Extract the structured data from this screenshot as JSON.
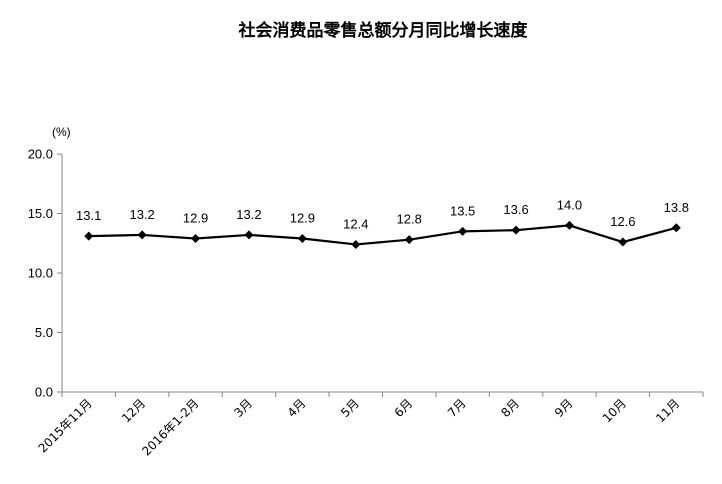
{
  "chart_data": {
    "type": "line",
    "title": "社会消费品零售总额分月同比增长速度",
    "unit_label": "(%)",
    "categories": [
      "2015年11月",
      "12月",
      "2016年1-2月",
      "3月",
      "4月",
      "5月",
      "6月",
      "7月",
      "8月",
      "9月",
      "10月",
      "11月"
    ],
    "series": [
      {
        "values": [
          13.1,
          13.2,
          12.9,
          13.2,
          12.9,
          12.4,
          12.8,
          13.5,
          13.6,
          14.0,
          12.6,
          13.8
        ],
        "labels": [
          "13.1",
          "13.2",
          "12.9",
          "13.2",
          "12.9",
          "12.4",
          "12.8",
          "13.5",
          "13.6",
          "14.0",
          "12.6",
          "13.8"
        ],
        "marker": "diamond",
        "color": "#000000"
      }
    ],
    "ylim": [
      0,
      20
    ],
    "yticks": [
      0,
      5,
      10,
      15,
      20
    ],
    "ytick_labels": [
      "0.0",
      "5.0",
      "10.0",
      "15.0",
      "20.0"
    ],
    "grid": false,
    "legend": "none"
  }
}
